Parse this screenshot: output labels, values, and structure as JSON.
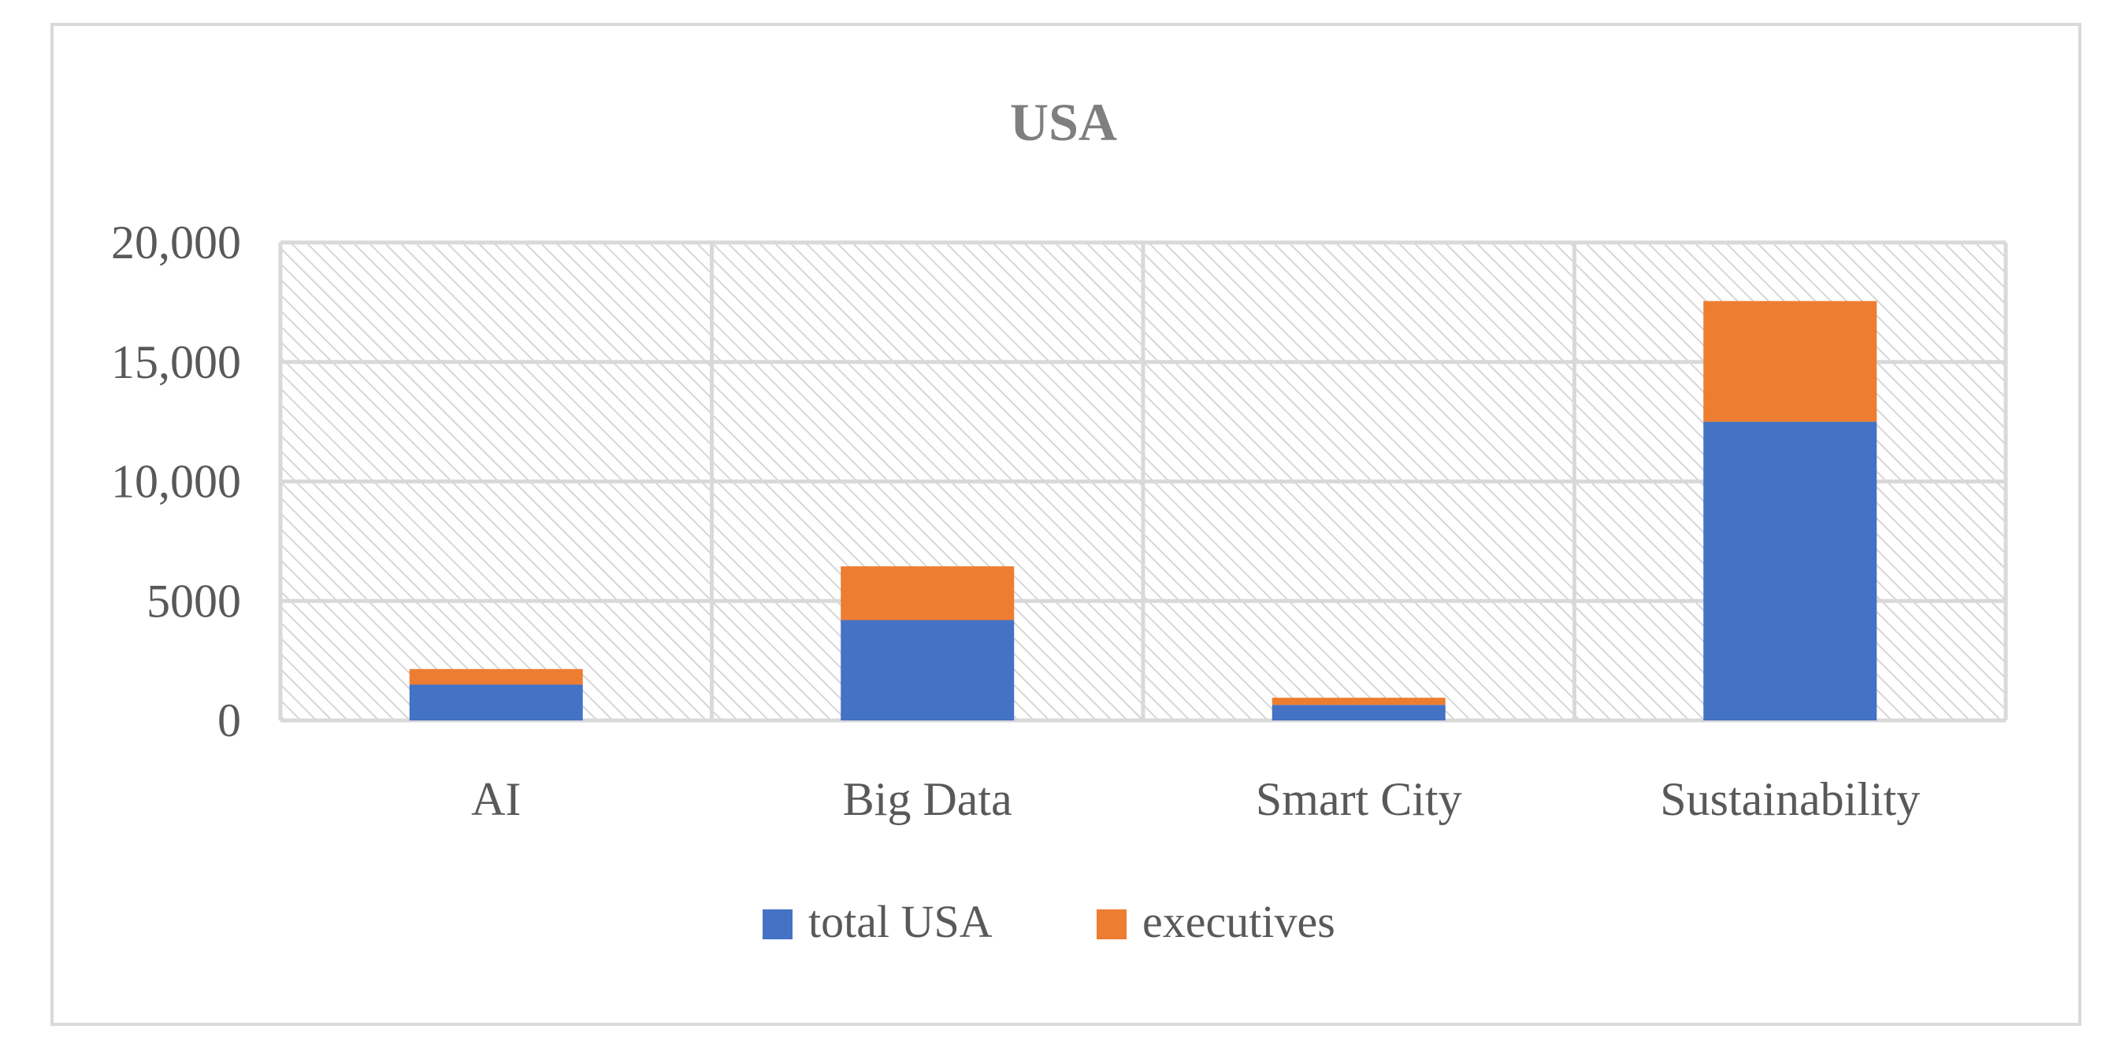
{
  "chart_data": {
    "type": "bar",
    "stacked": true,
    "title": "USA",
    "xlabel": "",
    "ylabel": "",
    "categories": [
      "AI",
      "Big Data",
      "Smart City",
      "Sustainability"
    ],
    "series": [
      {
        "name": "total USA",
        "values": [
          1500,
          4200,
          650,
          12500
        ],
        "color": "#4472C4"
      },
      {
        "name": "executives",
        "values": [
          650,
          2250,
          300,
          5050
        ],
        "color": "#ED7D31"
      }
    ],
    "ylim": [
      0,
      20000
    ],
    "yticks": [
      0,
      5000,
      10000,
      15000,
      20000
    ],
    "ytick_labels": [
      "0",
      "5000",
      "10,000",
      "15,000",
      "20,000"
    ],
    "grid": true,
    "legend_position": "bottom-center",
    "colors": {
      "title": "#7F7F7F",
      "axis_text": "#595959",
      "gridline": "#D9D9D9",
      "plot_hatch": "#D9D9D9",
      "border": "#D9D9D9"
    }
  }
}
